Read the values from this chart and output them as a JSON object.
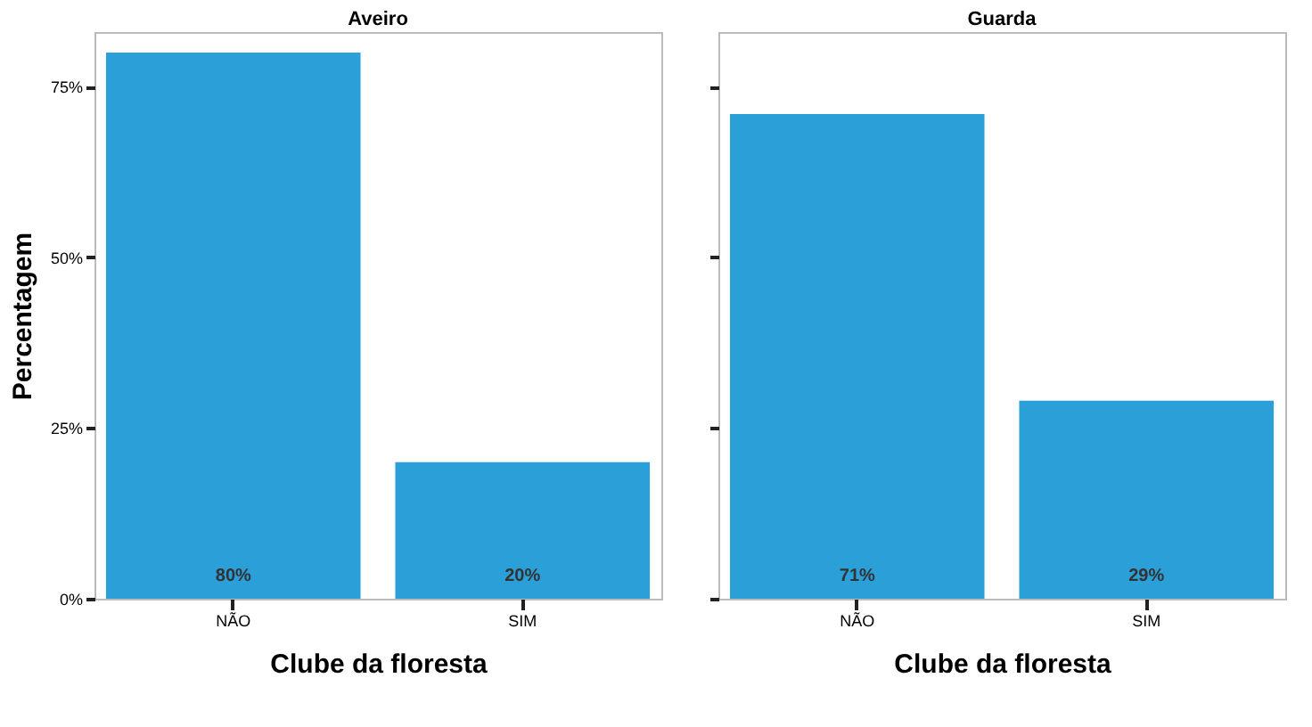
{
  "chart_data": [
    {
      "type": "bar",
      "title": "Aveiro",
      "xlabel": "Clube da floresta",
      "ylabel": "Percentagem",
      "categories": [
        "NÃO",
        "SIM"
      ],
      "values": [
        80,
        20
      ],
      "color": "#2a9fd8",
      "value_labels": [
        "80%",
        "20%"
      ],
      "ylim": [
        0,
        83
      ],
      "yticks": [
        {
          "value": 0,
          "label": "0%"
        },
        {
          "value": 25,
          "label": "25%"
        },
        {
          "value": 50,
          "label": "50%"
        },
        {
          "value": 75,
          "label": "75%"
        }
      ]
    },
    {
      "type": "bar",
      "title": "Guarda",
      "xlabel": "Clube da floresta",
      "categories": [
        "NÃO",
        "SIM"
      ],
      "values": [
        71,
        29
      ],
      "color": "#2a9fd8",
      "value_labels": [
        "71%",
        "29%"
      ],
      "ylim": [
        0,
        83
      ],
      "yticks": [
        {
          "value": 0,
          "label": null
        },
        {
          "value": 25,
          "label": null
        },
        {
          "value": 50,
          "label": null
        },
        {
          "value": 75,
          "label": null
        }
      ],
      "tick_labels": "x"
    }
  ]
}
